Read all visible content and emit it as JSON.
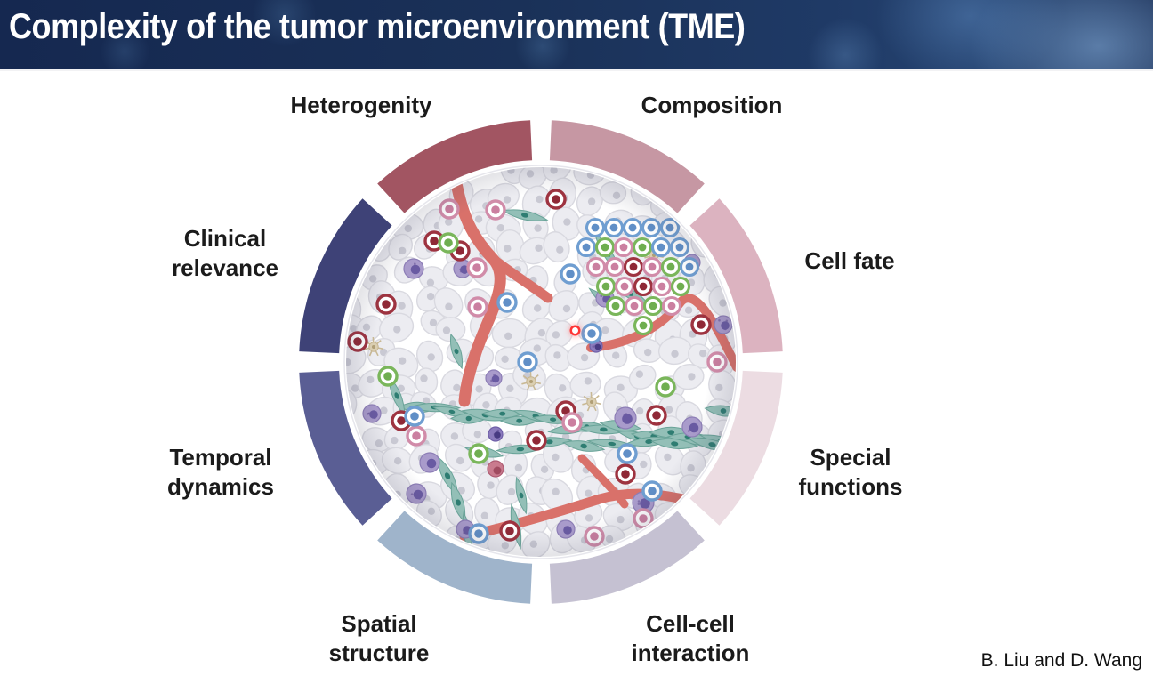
{
  "header": {
    "title": "Complexity of the tumor microenvironment (TME)"
  },
  "diagram": {
    "segments": [
      {
        "id": "heterogenity",
        "label": "Heterogenity",
        "color": "#a25562"
      },
      {
        "id": "composition",
        "label": "Composition",
        "color": "#c697a3"
      },
      {
        "id": "cell-fate",
        "label": "Cell fate",
        "color": "#dcb3c0"
      },
      {
        "id": "special-functions",
        "label": "Special functions",
        "color": "#ecdce2"
      },
      {
        "id": "cell-cell-interaction",
        "label": "Cell-cell interaction",
        "color": "#c5c1d2"
      },
      {
        "id": "spatial-structure",
        "label": "Spatial structure",
        "color": "#9fb4cb"
      },
      {
        "id": "temporal-dynamics",
        "label": "Temporal dynamics",
        "color": "#5a5e94"
      },
      {
        "id": "clinical-relevance",
        "label": "Clinical relevance",
        "color": "#3e4277"
      }
    ]
  },
  "attribution": "B. Liu and D. Wang",
  "colors": {
    "vessel": "#d9716a",
    "fibroblast_fill": "#93bfb7",
    "fibroblast_edge": "#69a398",
    "fibroblast_nucleus": "#2e7d72",
    "tumor_cell_fill": "#ececf1",
    "tumor_cell_edge": "#d9d9e0",
    "tumor_nucleus": "#c9c9d3",
    "ring_red": "#9e3340",
    "dot_red": "#8f2836",
    "ring_pink": "#d18ca9",
    "dot_pink": "#cb7fa0",
    "ring_blue": "#6f9ed1",
    "dot_blue": "#608fc7",
    "ring_green": "#7ab65b",
    "dot_green": "#6fae50",
    "purple_fill": "#a99bcb",
    "purple_edge": "#8d7eb6",
    "purple_nucleus": "#695aa2",
    "beige_fill": "#dbcfb2",
    "beige_edge": "#c6b591",
    "laser": "#ff3333"
  }
}
